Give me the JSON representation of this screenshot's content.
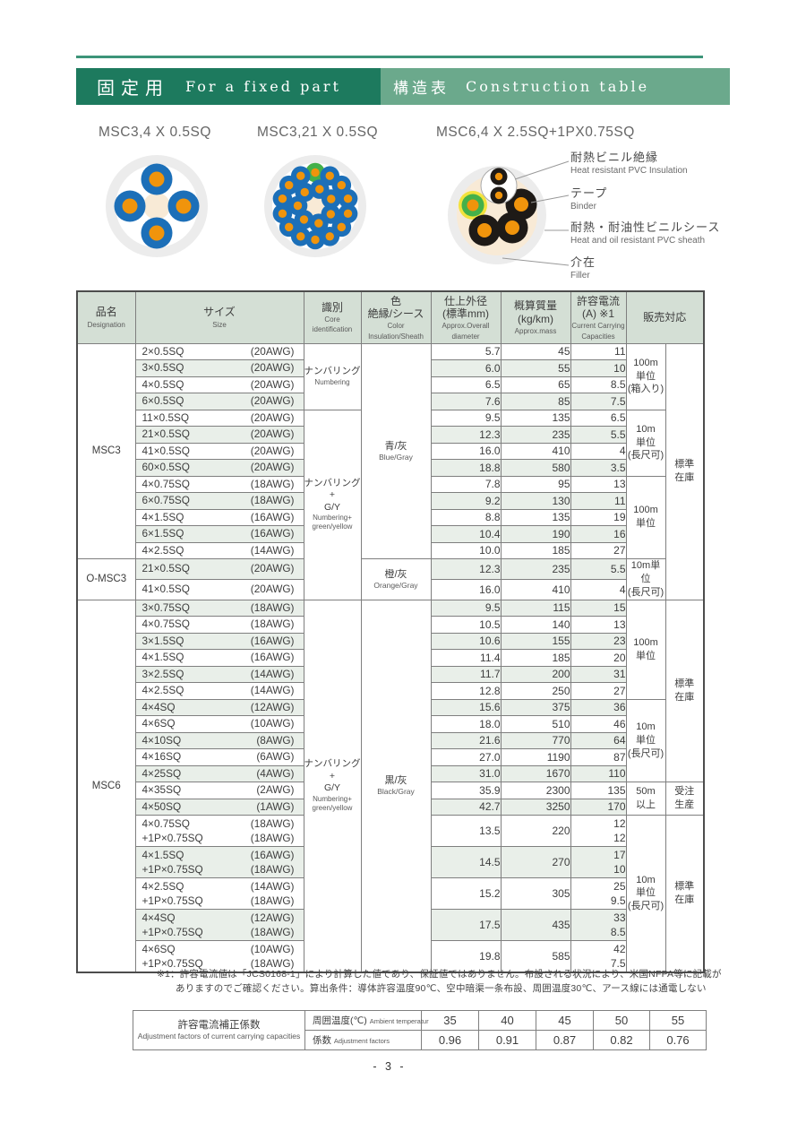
{
  "banner": {
    "jp_left": "固定用",
    "en_left": "For a fixed part",
    "jp_right": "構造表",
    "en_right": "Construction table",
    "dark_color": "#1d7a5e",
    "light_color": "#6ba98c"
  },
  "diagrams": {
    "titles": [
      "MSC3,4 X 0.5SQ",
      "MSC3,21 X 0.5SQ",
      "MSC6,4 X 2.5SQ+1PX0.75SQ"
    ],
    "callouts": [
      {
        "jp": "耐熱ビニル絶縁",
        "en": "Heat resistant PVC Insulation"
      },
      {
        "jp": "テープ",
        "en": "Binder"
      },
      {
        "jp": "耐熱・耐油性ビニルシース",
        "en": "Heat and oil resistant PVC sheath"
      },
      {
        "jp": "介在",
        "en": "Filler"
      }
    ],
    "palette": {
      "sheath_gray": "#ececec",
      "inner_white": "#ffffff",
      "filler_cream": "#f8ead6",
      "core_blue": "#1c6fb8",
      "conductor_orange": "#f0940c",
      "core_green": "#44b04a",
      "core_yellow": "#f2e23c",
      "core_black": "#1e1a17"
    }
  },
  "table": {
    "headers": [
      {
        "jp": [
          "品名"
        ],
        "en": [
          "Designation"
        ]
      },
      {
        "jp": [
          "サイズ"
        ],
        "en": [
          "Size"
        ]
      },
      {
        "jp": [
          "識別"
        ],
        "en": [
          "Core",
          "identification"
        ]
      },
      {
        "jp": [
          "色",
          "絶縁/シース"
        ],
        "en": [
          "Color",
          "Insulation/Sheath"
        ]
      },
      {
        "jp": [
          "仕上外径",
          "(標準mm)"
        ],
        "en": [
          "Approx.Overall",
          "diameter"
        ]
      },
      {
        "jp": [
          "概算質量",
          "(kg/km)"
        ],
        "en": [
          "Approx.mass"
        ]
      },
      {
        "jp": [
          "許容電流",
          "(A) ※1"
        ],
        "en": [
          "Current Carrying",
          "Capacities"
        ]
      },
      {
        "jp": [
          "販売対応"
        ],
        "en": [],
        "colspan": 2
      }
    ],
    "rows": [
      {
        "s": "2×0.5SQ",
        "a": "(20AWG)",
        "d": "5.7",
        "m": "45",
        "c": "11"
      },
      {
        "s": "3×0.5SQ",
        "a": "(20AWG)",
        "d": "6.0",
        "m": "55",
        "c": "10"
      },
      {
        "s": "4×0.5SQ",
        "a": "(20AWG)",
        "d": "6.5",
        "m": "65",
        "c": "8.5"
      },
      {
        "s": "6×0.5SQ",
        "a": "(20AWG)",
        "d": "7.6",
        "m": "85",
        "c": "7.5"
      },
      {
        "s": "11×0.5SQ",
        "a": "(20AWG)",
        "d": "9.5",
        "m": "135",
        "c": "6.5"
      },
      {
        "s": "21×0.5SQ",
        "a": "(20AWG)",
        "d": "12.3",
        "m": "235",
        "c": "5.5"
      },
      {
        "s": "41×0.5SQ",
        "a": "(20AWG)",
        "d": "16.0",
        "m": "410",
        "c": "4"
      },
      {
        "s": "60×0.5SQ",
        "a": "(20AWG)",
        "d": "18.8",
        "m": "580",
        "c": "3.5"
      },
      {
        "s": "4×0.75SQ",
        "a": "(18AWG)",
        "d": "7.8",
        "m": "95",
        "c": "13"
      },
      {
        "s": "6×0.75SQ",
        "a": "(18AWG)",
        "d": "9.2",
        "m": "130",
        "c": "11"
      },
      {
        "s": "4×1.5SQ",
        "a": "(16AWG)",
        "d": "8.8",
        "m": "135",
        "c": "19"
      },
      {
        "s": "6×1.5SQ",
        "a": "(16AWG)",
        "d": "10.4",
        "m": "190",
        "c": "16"
      },
      {
        "s": "4×2.5SQ",
        "a": "(14AWG)",
        "d": "10.0",
        "m": "185",
        "c": "27"
      },
      {
        "s": "21×0.5SQ",
        "a": "(20AWG)",
        "d": "12.3",
        "m": "235",
        "c": "5.5"
      },
      {
        "s": "41×0.5SQ",
        "a": "(20AWG)",
        "d": "16.0",
        "m": "410",
        "c": "4"
      },
      {
        "s": "3×0.75SQ",
        "a": "(18AWG)",
        "d": "9.5",
        "m": "115",
        "c": "15"
      },
      {
        "s": "4×0.75SQ",
        "a": "(18AWG)",
        "d": "10.5",
        "m": "140",
        "c": "13"
      },
      {
        "s": "3×1.5SQ",
        "a": "(16AWG)",
        "d": "10.6",
        "m": "155",
        "c": "23"
      },
      {
        "s": "4×1.5SQ",
        "a": "(16AWG)",
        "d": "11.4",
        "m": "185",
        "c": "20"
      },
      {
        "s": "3×2.5SQ",
        "a": "(14AWG)",
        "d": "11.7",
        "m": "200",
        "c": "31"
      },
      {
        "s": "4×2.5SQ",
        "a": "(14AWG)",
        "d": "12.8",
        "m": "250",
        "c": "27"
      },
      {
        "s": "4×4SQ",
        "a": "(12AWG)",
        "d": "15.6",
        "m": "375",
        "c": "36"
      },
      {
        "s": "4×6SQ",
        "a": "(10AWG)",
        "d": "18.0",
        "m": "510",
        "c": "46"
      },
      {
        "s": "4×10SQ",
        "a": "(8AWG)",
        "d": "21.6",
        "m": "770",
        "c": "64"
      },
      {
        "s": "4×16SQ",
        "a": "(6AWG)",
        "d": "27.0",
        "m": "1190",
        "c": "87"
      },
      {
        "s": "4×25SQ",
        "a": "(4AWG)",
        "d": "31.0",
        "m": "1670",
        "c": "110"
      },
      {
        "s": "4×35SQ",
        "a": "(2AWG)",
        "d": "35.9",
        "m": "2300",
        "c": "135"
      },
      {
        "s": "4×50SQ",
        "a": "(1AWG)",
        "d": "42.7",
        "m": "3250",
        "c": "170"
      },
      {
        "s": "4×0.75SQ",
        "a": "(18AWG)",
        "s2": "+1P×0.75SQ",
        "a2": "(18AWG)",
        "d": "13.5",
        "m": "220",
        "c": "12",
        "c2": "12"
      },
      {
        "s": "4×1.5SQ",
        "a": "(16AWG)",
        "s2": "+1P×0.75SQ",
        "a2": "(18AWG)",
        "d": "14.5",
        "m": "270",
        "c": "17",
        "c2": "10"
      },
      {
        "s": "4×2.5SQ",
        "a": "(14AWG)",
        "s2": "+1P×0.75SQ",
        "a2": "(18AWG)",
        "d": "15.2",
        "m": "305",
        "c": "25",
        "c2": "9.5"
      },
      {
        "s": "4×4SQ",
        "a": "(12AWG)",
        "s2": "+1P×0.75SQ",
        "a2": "(18AWG)",
        "d": "17.5",
        "m": "435",
        "c": "33",
        "c2": "8.5"
      },
      {
        "s": "4×6SQ",
        "a": "(10AWG)",
        "s2": "+1P×0.75SQ",
        "a2": "(18AWG)",
        "d": "19.8",
        "m": "585",
        "c": "42",
        "c2": "7.5"
      }
    ],
    "designation_spans": [
      {
        "label": "MSC3",
        "from": 0,
        "count": 13
      },
      {
        "label": "O-MSC3",
        "from": 13,
        "count": 2
      },
      {
        "label": "MSC6",
        "from": 15,
        "count": 18
      }
    ],
    "ident_spans": [
      {
        "jp": [
          "ナンバリング"
        ],
        "en": [
          "Numbering"
        ],
        "from": 0,
        "count": 4
      },
      {
        "jp": [
          "ナンバリング+",
          "G/Y"
        ],
        "en": [
          "Numbering+",
          "green/yellow"
        ],
        "from": 4,
        "count": 11
      },
      {
        "jp": [
          "ナンバリング+",
          "G/Y"
        ],
        "en": [
          "Numbering+",
          "green/yellow"
        ],
        "from": 15,
        "count": 18
      }
    ],
    "color_spans": [
      {
        "jp": "青/灰",
        "en": "Blue/Gray",
        "from": 0,
        "count": 13
      },
      {
        "jp": "橙/灰",
        "en": "Orange/Gray",
        "from": 13,
        "count": 2
      },
      {
        "jp": "黒/灰",
        "en": "Black/Gray",
        "from": 15,
        "count": 18
      }
    ],
    "unit_spans": [
      {
        "lines": [
          "100m",
          "単位",
          "(箱入り)"
        ],
        "from": 0,
        "count": 4
      },
      {
        "lines": [
          "10m",
          "単位",
          "(長尺可)"
        ],
        "from": 4,
        "count": 4
      },
      {
        "lines": [
          "100m",
          "単位"
        ],
        "from": 8,
        "count": 5
      },
      {
        "lines": [
          "10m単位",
          "(長尺可)"
        ],
        "from": 13,
        "count": 2
      },
      {
        "lines": [
          "100m",
          "単位"
        ],
        "from": 15,
        "count": 6
      },
      {
        "lines": [
          "10m",
          "単位",
          "(長尺可)"
        ],
        "from": 21,
        "count": 5
      },
      {
        "lines": [
          "50m",
          "以上"
        ],
        "from": 26,
        "count": 2
      },
      {
        "lines": [
          "10m",
          "単位",
          "(長尺可)"
        ],
        "from": 28,
        "count": 5
      }
    ],
    "stock_spans": [
      {
        "lines": [
          "標準",
          "在庫"
        ],
        "from": 0,
        "count": 15
      },
      {
        "lines": [
          "標準",
          "在庫"
        ],
        "from": 15,
        "count": 11
      },
      {
        "lines": [
          "受注",
          "生産"
        ],
        "from": 26,
        "count": 2
      },
      {
        "lines": [
          "標準",
          "在庫"
        ],
        "from": 28,
        "count": 5
      }
    ]
  },
  "footnote": {
    "line1": "※1：許容電流値は「JCS0168-1」により計算した値であり、保証値ではありません。布設される状況により、米国NFPA等に記載が",
    "line2": "ありますのでご確認ください。算出条件：導体許容温度90℃、空中暗渠一条布設、周囲温度30℃、アース線には通電しない"
  },
  "adjust": {
    "title_jp": "許容電流補正係数",
    "title_en": "Adjustment factors of current carrying capacities",
    "temp_label_jp": "周囲温度(℃)",
    "temp_label_en": "Ambient temperatur",
    "factor_label_jp": "係数",
    "factor_label_en": "Adjustment factors",
    "temps": [
      "35",
      "40",
      "45",
      "50",
      "55"
    ],
    "factors": [
      "0.96",
      "0.91",
      "0.87",
      "0.82",
      "0.76"
    ]
  },
  "page": {
    "number": "- 3 -"
  }
}
